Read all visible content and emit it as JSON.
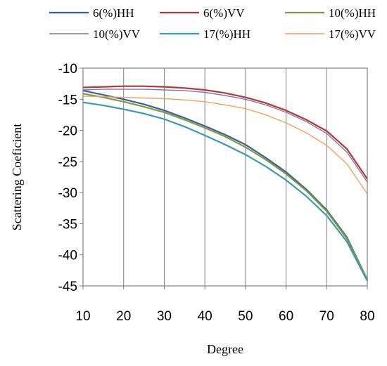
{
  "chart_data": {
    "type": "line",
    "title": "",
    "xlabel": "Degree",
    "ylabel": "Scattering Coeficient",
    "xlim": [
      10,
      80
    ],
    "ylim": [
      -45,
      -10
    ],
    "xticks": [
      10,
      20,
      30,
      40,
      50,
      60,
      70,
      80
    ],
    "yticks": [
      -10,
      -15,
      -20,
      -25,
      -30,
      -35,
      -40,
      -45
    ],
    "grid": "vertical",
    "legend_position": "top",
    "series": [
      {
        "name": "6(%)HH",
        "color": "#3a5fa0",
        "width": 2.2,
        "x": [
          10,
          15,
          20,
          25,
          30,
          35,
          40,
          45,
          50,
          55,
          60,
          65,
          70,
          75,
          80
        ],
        "y": [
          -13.6,
          -14.3,
          -15.0,
          -15.8,
          -16.8,
          -18.0,
          -19.3,
          -20.7,
          -22.3,
          -24.4,
          -26.7,
          -29.5,
          -32.8,
          -37.2,
          -44.0
        ]
      },
      {
        "name": "6(%)VV",
        "color": "#b03a3a",
        "width": 2.2,
        "x": [
          10,
          15,
          20,
          25,
          30,
          35,
          40,
          45,
          50,
          55,
          60,
          65,
          70,
          75,
          80
        ],
        "y": [
          -13.1,
          -13.0,
          -12.9,
          -12.9,
          -13.0,
          -13.2,
          -13.5,
          -14.0,
          -14.7,
          -15.6,
          -16.8,
          -18.3,
          -20.1,
          -23.0,
          -27.8
        ]
      },
      {
        "name": "10(%)HH",
        "color": "#7f9a3c",
        "width": 2.2,
        "x": [
          10,
          15,
          20,
          25,
          30,
          35,
          40,
          45,
          50,
          55,
          60,
          65,
          70,
          75,
          80
        ],
        "y": [
          -14.1,
          -14.7,
          -15.4,
          -16.2,
          -17.1,
          -18.3,
          -19.6,
          -21.0,
          -22.7,
          -24.7,
          -27.0,
          -29.7,
          -33.0,
          -37.4,
          -44.0
        ]
      },
      {
        "name": "10(%)VV",
        "color": "#8a74ab",
        "width": 1.4,
        "x": [
          10,
          15,
          20,
          25,
          30,
          35,
          40,
          45,
          50,
          55,
          60,
          65,
          70,
          75,
          80
        ],
        "y": [
          -13.5,
          -13.4,
          -13.4,
          -13.4,
          -13.5,
          -13.6,
          -13.9,
          -14.4,
          -15.0,
          -15.9,
          -17.1,
          -18.6,
          -20.5,
          -23.5,
          -28.3
        ]
      },
      {
        "name": "17(%)HH",
        "color": "#3a9ab3",
        "width": 2.2,
        "x": [
          10,
          15,
          20,
          25,
          30,
          35,
          40,
          45,
          50,
          55,
          60,
          65,
          70,
          75,
          80
        ],
        "y": [
          -15.5,
          -16.0,
          -16.6,
          -17.3,
          -18.2,
          -19.4,
          -20.8,
          -22.3,
          -23.9,
          -25.8,
          -28.0,
          -30.6,
          -33.7,
          -37.9,
          -44.2
        ]
      },
      {
        "name": "17(%)VV",
        "color": "#f0a060",
        "width": 1.4,
        "x": [
          10,
          15,
          20,
          25,
          30,
          35,
          40,
          45,
          50,
          55,
          60,
          65,
          70,
          75,
          80
        ],
        "y": [
          -14.5,
          -14.6,
          -14.7,
          -14.8,
          -14.9,
          -15.1,
          -15.4,
          -15.9,
          -16.5,
          -17.5,
          -18.8,
          -20.4,
          -22.4,
          -25.4,
          -30.2
        ]
      }
    ]
  }
}
